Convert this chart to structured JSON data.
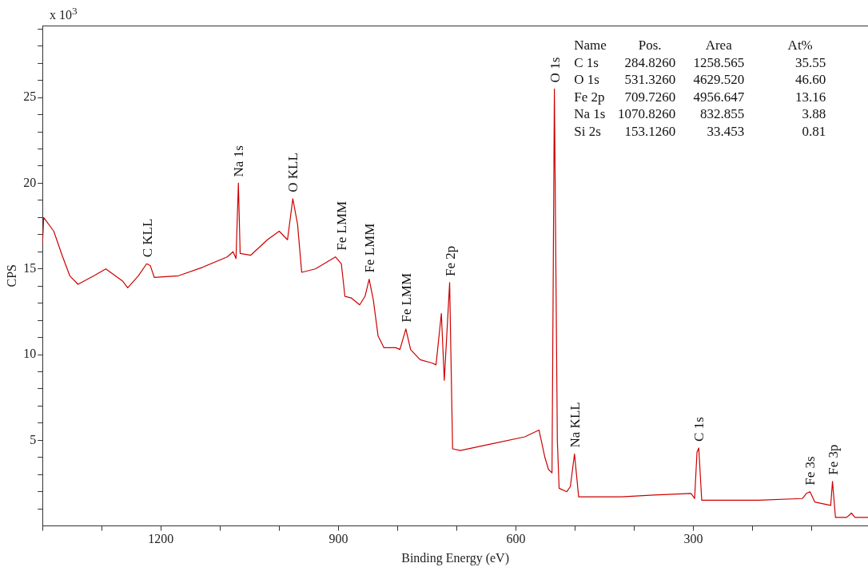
{
  "chart_data": {
    "type": "line",
    "xlabel": "Binding Energy (eV)",
    "ylabel": "CPS",
    "xlim": [
      1400,
      5
    ],
    "ylim": [
      0,
      29.2
    ],
    "xticks": [
      {
        "value": 1400,
        "label": null
      },
      {
        "value": 1300,
        "label": null
      },
      1200,
      {
        "value": 1100,
        "label": null
      },
      {
        "value": 1000,
        "label": null
      },
      900,
      {
        "value": 800,
        "label": null
      },
      {
        "value": 700,
        "label": null
      },
      600,
      {
        "value": 500,
        "label": null
      },
      {
        "value": 400,
        "label": null
      },
      300,
      {
        "value": 200,
        "label": null
      },
      {
        "value": 100,
        "label": null
      }
    ],
    "yticks": [
      {
        "value": 1,
        "label": null
      },
      {
        "value": 2,
        "label": null
      },
      {
        "value": 3,
        "label": null
      },
      {
        "value": 4,
        "label": null
      },
      5,
      {
        "value": 6,
        "label": null
      },
      {
        "value": 7,
        "label": null
      },
      {
        "value": 8,
        "label": null
      },
      {
        "value": 9,
        "label": null
      },
      10,
      {
        "value": 11,
        "label": null
      },
      {
        "value": 12,
        "label": null
      },
      {
        "value": 13,
        "label": null
      },
      {
        "value": 14,
        "label": null
      },
      15,
      {
        "value": 16,
        "label": null
      },
      {
        "value": 17,
        "label": null
      },
      {
        "value": 18,
        "label": null
      },
      {
        "value": 19,
        "label": null
      },
      20,
      {
        "value": 21,
        "label": null
      },
      {
        "value": 22,
        "label": null
      },
      {
        "value": 23,
        "label": null
      },
      {
        "value": 24,
        "label": null
      },
      25,
      {
        "value": 26,
        "label": null
      },
      {
        "value": 27,
        "label": null
      },
      {
        "value": 28,
        "label": null
      },
      {
        "value": 29,
        "label": null
      }
    ],
    "grid": false,
    "legend": false,
    "marker": "none",
    "line_style": "solid",
    "series": [
      {
        "color": "#cc0000",
        "x": [
          1400,
          1398,
          1381,
          1367,
          1354,
          1340,
          1313,
          1293,
          1265,
          1256,
          1238,
          1224,
          1218,
          1211,
          1170,
          1129,
          1088,
          1078,
          1073,
          1069,
          1066,
          1048,
          1020,
          1000,
          986,
          977,
          969,
          962,
          939,
          905,
          895,
          889,
          878,
          864,
          855,
          848,
          841,
          833,
          823,
          803,
          796,
          786,
          778,
          762,
          741,
          735,
          726,
          721,
          712,
          707,
          694,
          640,
          585,
          561,
          551,
          545,
          539,
          535,
          530,
          527,
          514,
          508,
          501,
          494,
          422,
          367,
          304,
          298,
          294,
          291,
          286,
          190,
          116,
          109,
          103,
          99,
          95,
          68,
          65,
          60,
          41,
          33,
          27,
          5
        ],
        "values": [
          16.5,
          18.0,
          17.2,
          15.8,
          14.6,
          14.1,
          14.6,
          15.0,
          14.3,
          13.9,
          14.6,
          15.3,
          15.2,
          14.5,
          14.6,
          15.1,
          15.7,
          16.0,
          15.6,
          20.0,
          15.9,
          15.8,
          16.7,
          17.2,
          16.7,
          19.1,
          17.6,
          14.8,
          15.0,
          15.7,
          15.3,
          13.4,
          13.3,
          12.9,
          13.4,
          14.4,
          13.2,
          11.1,
          10.4,
          10.4,
          10.3,
          11.5,
          10.3,
          9.7,
          9.5,
          9.4,
          12.4,
          8.5,
          14.2,
          4.5,
          4.4,
          4.8,
          5.2,
          5.6,
          4.0,
          3.3,
          3.1,
          25.5,
          5.0,
          2.2,
          2.0,
          2.3,
          4.2,
          1.7,
          1.7,
          1.8,
          1.9,
          1.6,
          4.3,
          4.55,
          1.5,
          1.5,
          1.6,
          1.9,
          2.0,
          1.7,
          1.4,
          1.2,
          2.6,
          0.5,
          0.5,
          0.75,
          0.5,
          0.5
        ]
      }
    ],
    "annotations": [
      "x 10$^{3}$",
      {
        "text": "C KLL",
        "x": 1224,
        "y": 15.3
      },
      {
        "text": "Na 1s",
        "x": 1069,
        "y": 20.0
      },
      {
        "text": "O KLL",
        "x": 977,
        "y": 19.1
      },
      {
        "text": "Fe LMM",
        "x": 895,
        "y": 15.7
      },
      {
        "text": "Fe LMM",
        "x": 848,
        "y": 14.4
      },
      {
        "text": "Fe LMM",
        "x": 786,
        "y": 11.5
      },
      {
        "text": "Fe 2p",
        "x": 712,
        "y": 14.2
      },
      {
        "text": "O 1s",
        "x": 535,
        "y": 25.5
      },
      {
        "text": "Na KLL",
        "x": 501,
        "y": 4.2
      },
      {
        "text": "C 1s",
        "x": 291,
        "y": 4.55
      },
      {
        "text": "Fe 3s",
        "x": 103,
        "y": 2.0
      },
      {
        "text": "Fe 3p",
        "x": 65,
        "y": 2.6
      },
      "Name",
      "Pos.",
      "Area",
      "At%",
      "C 1s",
      "284.8260",
      "1258.565",
      "35.55",
      "O 1s",
      "531.3260",
      "4629.520",
      "46.60",
      "Fe 2p",
      "709.7260",
      "4956.647",
      "13.16",
      "Na 1s",
      "1070.8260",
      "832.855",
      "3.88",
      "Si 2s",
      "153.1260",
      "33.453",
      "0.81"
    ]
  }
}
